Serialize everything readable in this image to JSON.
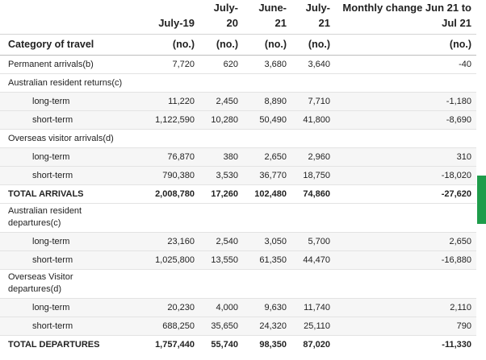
{
  "table": {
    "columns": [
      "",
      "July-19",
      "July-20",
      "June-21",
      "July-21",
      "Monthly change Jun 21 to Jul 21"
    ],
    "header_row": {
      "label": "Category of travel",
      "units": [
        "(no.)",
        "(no.)",
        "(no.)",
        "(no.)",
        "(no.)"
      ]
    },
    "rows": [
      {
        "label": "Permanent arrivals(b)",
        "values": [
          "7,720",
          "620",
          "3,680",
          "3,640",
          "-40"
        ]
      },
      {
        "label": "Australian resident returns(c)",
        "values": [
          "",
          "",
          "",
          "",
          ""
        ]
      },
      {
        "label": "long-term",
        "values": [
          "11,220",
          "2,450",
          "8,890",
          "7,710",
          "-1,180"
        ]
      },
      {
        "label": "short-term",
        "values": [
          "1,122,590",
          "10,280",
          "50,490",
          "41,800",
          "-8,690"
        ]
      },
      {
        "label": "Overseas visitor arrivals(d)",
        "values": [
          "",
          "",
          "",
          "",
          ""
        ]
      },
      {
        "label": "long-term",
        "values": [
          "76,870",
          "380",
          "2,650",
          "2,960",
          "310"
        ]
      },
      {
        "label": "short-term",
        "values": [
          "790,380",
          "3,530",
          "36,770",
          "18,750",
          "-18,020"
        ]
      },
      {
        "label": "TOTAL ARRIVALS",
        "values": [
          "2,008,780",
          "17,260",
          "102,480",
          "74,860",
          "-27,620"
        ]
      },
      {
        "label": "Australian resident departures(c)",
        "values": [
          "",
          "",
          "",
          "",
          ""
        ]
      },
      {
        "label": "long-term",
        "values": [
          "23,160",
          "2,540",
          "3,050",
          "5,700",
          "2,650"
        ]
      },
      {
        "label": "short-term",
        "values": [
          "1,025,800",
          "13,550",
          "61,350",
          "44,470",
          "-16,880"
        ]
      },
      {
        "label": "Overseas Visitor departures(d)",
        "values": [
          "",
          "",
          "",
          "",
          ""
        ]
      },
      {
        "label": "long-term",
        "values": [
          "20,230",
          "4,000",
          "9,630",
          "11,740",
          "2,110"
        ]
      },
      {
        "label": "short-term",
        "values": [
          "688,250",
          "35,650",
          "24,320",
          "25,110",
          "790"
        ]
      },
      {
        "label": "TOTAL DEPARTURES",
        "values": [
          "1,757,440",
          "55,740",
          "98,350",
          "87,020",
          "-11,330"
        ]
      }
    ]
  },
  "colors": {
    "scroll_tab": "#1e9c4b",
    "row_shade": "#f6f6f6",
    "rule": "#e3e3e3"
  }
}
